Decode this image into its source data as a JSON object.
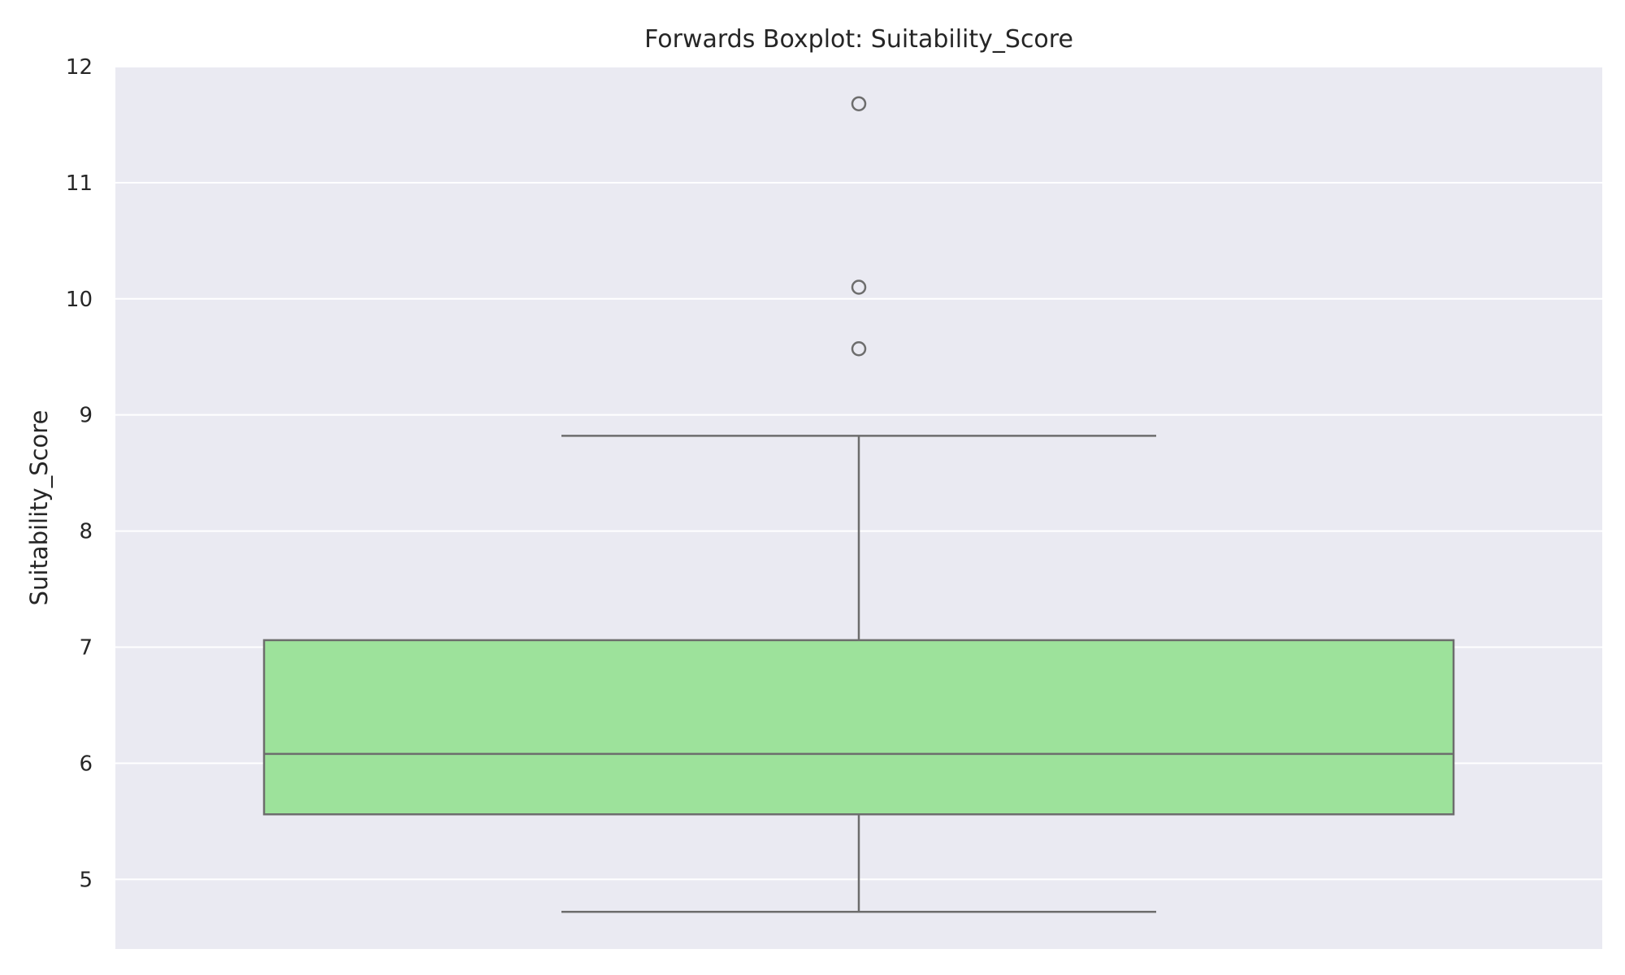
{
  "chart_data": {
    "type": "box",
    "title": "Forwards Boxplot: Suitability_Score",
    "xlabel": "",
    "ylabel": "Suitability_Score",
    "ylim": [
      4.4,
      12
    ],
    "yticks": [
      5,
      6,
      7,
      8,
      9,
      10,
      11,
      12
    ],
    "grid": true,
    "box": {
      "whisker_low": 4.72,
      "q1": 5.56,
      "median": 6.08,
      "q3": 7.06,
      "whisker_high": 8.82,
      "outliers": [
        9.57,
        10.1,
        11.68
      ]
    },
    "colors": {
      "plot_background": "#eaeaf2",
      "grid": "#ffffff",
      "box_fill": "#9de29b",
      "line": "#6d6d6d"
    }
  }
}
